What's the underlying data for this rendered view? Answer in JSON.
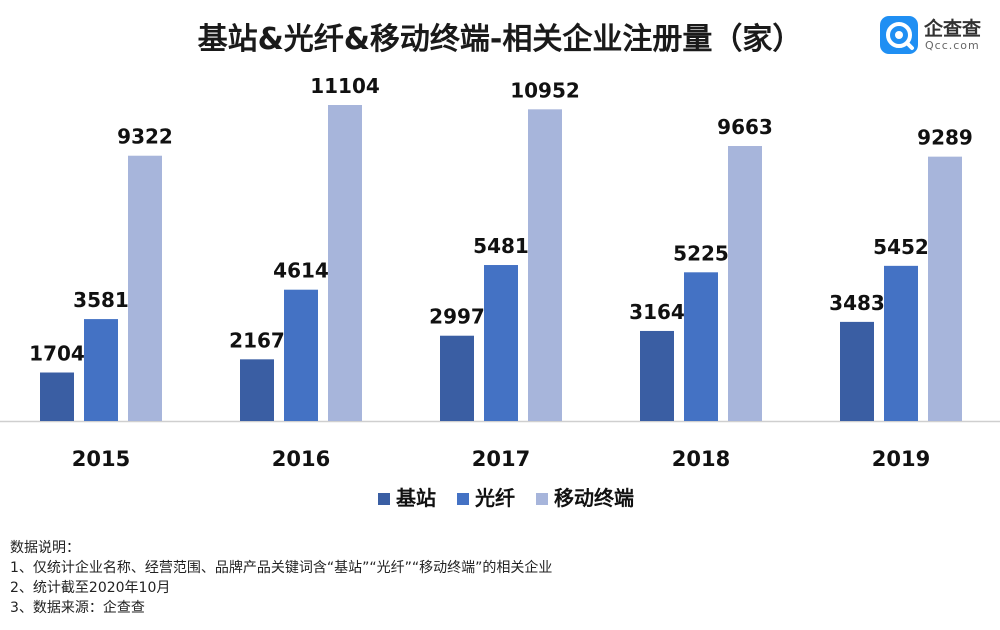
{
  "title": "基站&光纤&移动终端-相关企业注册量（家）",
  "logo": {
    "name": "企查查",
    "url": "Qcc.com"
  },
  "chart_data": {
    "type": "bar",
    "title": "基站&光纤&移动终端-相关企业注册量（家）",
    "categories": [
      "2015",
      "2016",
      "2017",
      "2018",
      "2019"
    ],
    "series": [
      {
        "name": "基站",
        "color": "#3a5ea3",
        "values": [
          1704,
          2167,
          2997,
          3164,
          3483
        ]
      },
      {
        "name": "光纤",
        "color": "#4472c4",
        "values": [
          3581,
          4614,
          5481,
          5225,
          5452
        ]
      },
      {
        "name": "移动终端",
        "color": "#a7b5db",
        "values": [
          9322,
          11104,
          10952,
          9663,
          9289
        ]
      }
    ],
    "ylim": [
      0,
      12000
    ],
    "grid": false,
    "legend": "bottom"
  },
  "notes": {
    "heading": "数据说明：",
    "lines": [
      "1、仅统计企业名称、经营范围、品牌产品关键词含“基站”“光纤”“移动终端”的相关企业",
      "2、统计截至2020年10月",
      "3、数据来源：企查查"
    ]
  }
}
